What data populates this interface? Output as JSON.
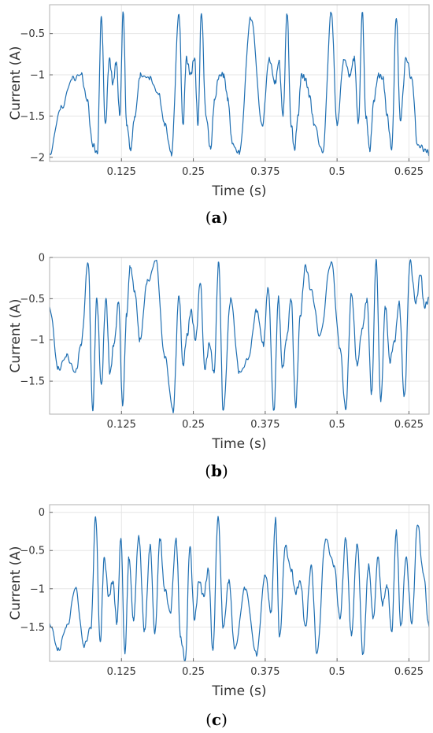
{
  "chart_data": [
    {
      "type": "line",
      "panel": "a",
      "xlabel": "Time (s)",
      "ylabel": "Current (A)",
      "xticks": [
        0.125,
        0.25,
        0.375,
        0.5,
        0.625
      ],
      "xtick_labels": [
        "0.125",
        "0.25",
        "0.375",
        "0.5",
        "0.625"
      ],
      "yticks": [
        -2,
        -1.5,
        -1,
        -0.5
      ],
      "ytick_labels": [
        "−2",
        "−1.5",
        "−1",
        "−0.5"
      ],
      "xlim": [
        0,
        0.66
      ],
      "ylim": [
        -2.05,
        -0.15
      ],
      "grid": true,
      "color": "#1f6fb2",
      "series": [
        {
          "x": [
            0.0,
            0.02,
            0.04,
            0.055,
            0.065,
            0.075,
            0.083,
            0.09,
            0.097,
            0.104,
            0.11,
            0.116,
            0.122,
            0.128,
            0.134,
            0.141,
            0.148,
            0.158,
            0.175,
            0.19,
            0.2,
            0.212,
            0.225,
            0.232,
            0.238,
            0.245,
            0.252,
            0.258,
            0.264,
            0.272,
            0.28,
            0.287,
            0.295,
            0.303,
            0.31,
            0.318,
            0.33,
            0.35,
            0.37,
            0.382,
            0.392,
            0.399,
            0.406,
            0.413,
            0.42,
            0.426,
            0.432,
            0.438,
            0.445,
            0.452,
            0.46,
            0.475,
            0.49,
            0.5,
            0.512,
            0.522,
            0.53,
            0.537,
            0.544,
            0.55,
            0.557,
            0.564,
            0.572,
            0.58,
            0.587,
            0.595,
            0.603,
            0.61,
            0.62,
            0.63,
            0.64,
            0.652,
            0.66
          ],
          "y": [
            -1.95,
            -1.4,
            -1.05,
            -1.0,
            -1.3,
            -1.85,
            -1.95,
            -0.3,
            -1.6,
            -0.8,
            -1.1,
            -0.85,
            -1.5,
            -0.25,
            -1.6,
            -1.9,
            -1.5,
            -1.0,
            -1.05,
            -1.25,
            -1.6,
            -1.95,
            -0.25,
            -1.6,
            -0.8,
            -1.0,
            -0.8,
            -1.6,
            -0.25,
            -1.5,
            -1.9,
            -1.3,
            -1.0,
            -1.0,
            -1.3,
            -1.85,
            -1.95,
            -0.3,
            -1.6,
            -0.8,
            -1.1,
            -0.85,
            -1.5,
            -0.25,
            -1.6,
            -1.9,
            -1.5,
            -1.0,
            -1.05,
            -1.25,
            -1.6,
            -1.95,
            -0.25,
            -1.6,
            -0.8,
            -1.0,
            -0.8,
            -1.6,
            -0.25,
            -1.5,
            -1.9,
            -1.3,
            -1.0,
            -1.05,
            -1.5,
            -1.9,
            -0.3,
            -1.55,
            -0.8,
            -1.05,
            -1.85,
            -1.9,
            -1.95
          ]
        }
      ]
    },
    {
      "type": "line",
      "panel": "b",
      "xlabel": "Time (s)",
      "ylabel": "Current (A)",
      "xticks": [
        0.125,
        0.25,
        0.375,
        0.5,
        0.625
      ],
      "xtick_labels": [
        "0.125",
        "0.25",
        "0.375",
        "0.5",
        "0.625"
      ],
      "yticks": [
        -1.5,
        -1,
        -0.5,
        0
      ],
      "ytick_labels": [
        "−1.5",
        "−1",
        "−0.5",
        "0"
      ],
      "xlim": [
        0,
        0.66
      ],
      "ylim": [
        -1.9,
        0.0
      ],
      "grid": true,
      "color": "#1f6fb2",
      "series": [
        {
          "x": [
            0.0,
            0.015,
            0.03,
            0.045,
            0.055,
            0.067,
            0.075,
            0.082,
            0.09,
            0.098,
            0.105,
            0.112,
            0.12,
            0.127,
            0.134,
            0.14,
            0.148,
            0.157,
            0.17,
            0.185,
            0.2,
            0.215,
            0.225,
            0.232,
            0.239,
            0.246,
            0.254,
            0.262,
            0.27,
            0.278,
            0.286,
            0.294,
            0.302,
            0.315,
            0.33,
            0.345,
            0.36,
            0.372,
            0.38,
            0.39,
            0.398,
            0.405,
            0.412,
            0.42,
            0.428,
            0.436,
            0.445,
            0.455,
            0.47,
            0.49,
            0.505,
            0.515,
            0.525,
            0.535,
            0.544,
            0.552,
            0.56,
            0.568,
            0.576,
            0.584,
            0.592,
            0.6,
            0.608,
            0.617,
            0.627,
            0.637,
            0.645,
            0.652,
            0.66
          ],
          "y": [
            -0.6,
            -1.35,
            -1.2,
            -1.4,
            -1.05,
            -0.05,
            -1.85,
            -0.5,
            -1.55,
            -0.5,
            -1.4,
            -1.05,
            -0.55,
            -1.8,
            -0.7,
            -0.1,
            -0.4,
            -1.0,
            -0.3,
            -0.05,
            -1.2,
            -1.85,
            -0.45,
            -1.3,
            -0.95,
            -0.65,
            -1.0,
            -0.3,
            -1.35,
            -1.05,
            -1.4,
            -0.05,
            -1.85,
            -0.5,
            -1.4,
            -1.25,
            -0.65,
            -1.05,
            -0.35,
            -1.85,
            -0.5,
            -1.35,
            -1.0,
            -0.5,
            -1.8,
            -0.7,
            -0.1,
            -0.4,
            -0.95,
            -0.05,
            -1.1,
            -1.85,
            -0.45,
            -1.3,
            -0.85,
            -0.5,
            -1.65,
            -0.05,
            -1.75,
            -0.6,
            -1.25,
            -1.0,
            -0.55,
            -1.7,
            -0.05,
            -0.55,
            -0.2,
            -0.6,
            -0.5
          ]
        }
      ]
    },
    {
      "type": "line",
      "panel": "c",
      "xlabel": "Time (s)",
      "ylabel": "Current (A)",
      "xticks": [
        0.125,
        0.25,
        0.375,
        0.5,
        0.625
      ],
      "xtick_labels": [
        "0.125",
        "0.25",
        "0.375",
        "0.5",
        "0.625"
      ],
      "yticks": [
        -1.5,
        -1,
        -0.5,
        0
      ],
      "ytick_labels": [
        "−1.5",
        "−1",
        "−0.5",
        "0"
      ],
      "xlim": [
        0,
        0.66
      ],
      "ylim": [
        -1.95,
        0.1
      ],
      "grid": true,
      "color": "#1f6fb2",
      "series": [
        {
          "x": [
            0.0,
            0.015,
            0.03,
            0.045,
            0.06,
            0.072,
            0.08,
            0.088,
            0.095,
            0.103,
            0.11,
            0.117,
            0.124,
            0.131,
            0.138,
            0.146,
            0.155,
            0.165,
            0.175,
            0.183,
            0.192,
            0.2,
            0.21,
            0.22,
            0.228,
            0.236,
            0.244,
            0.252,
            0.26,
            0.268,
            0.276,
            0.284,
            0.293,
            0.302,
            0.312,
            0.322,
            0.34,
            0.36,
            0.375,
            0.385,
            0.393,
            0.4,
            0.41,
            0.42,
            0.428,
            0.436,
            0.445,
            0.455,
            0.465,
            0.48,
            0.495,
            0.505,
            0.515,
            0.525,
            0.535,
            0.545,
            0.555,
            0.563,
            0.571,
            0.579,
            0.587,
            0.595,
            0.603,
            0.611,
            0.62,
            0.63,
            0.64,
            0.65,
            0.66
          ],
          "y": [
            -1.45,
            -1.8,
            -1.5,
            -1.0,
            -1.75,
            -1.5,
            -0.05,
            -1.7,
            -0.6,
            -1.1,
            -0.9,
            -1.45,
            -0.35,
            -1.85,
            -0.6,
            -1.4,
            -0.3,
            -1.55,
            -0.45,
            -1.6,
            -0.35,
            -1.0,
            -1.3,
            -0.35,
            -1.65,
            -1.95,
            -0.45,
            -1.4,
            -0.9,
            -1.1,
            -0.75,
            -1.8,
            -0.05,
            -1.5,
            -0.9,
            -1.8,
            -1.0,
            -1.85,
            -0.8,
            -1.3,
            -0.1,
            -1.65,
            -0.45,
            -0.75,
            -1.05,
            -0.9,
            -1.5,
            -0.7,
            -1.85,
            -0.35,
            -0.7,
            -1.4,
            -0.35,
            -1.6,
            -0.4,
            -1.85,
            -0.7,
            -1.4,
            -0.6,
            -1.2,
            -0.95,
            -1.55,
            -0.25,
            -1.5,
            -0.6,
            -1.45,
            -0.15,
            -0.8,
            -1.5
          ]
        }
      ]
    }
  ],
  "captions": [
    "a",
    "b",
    "c"
  ]
}
